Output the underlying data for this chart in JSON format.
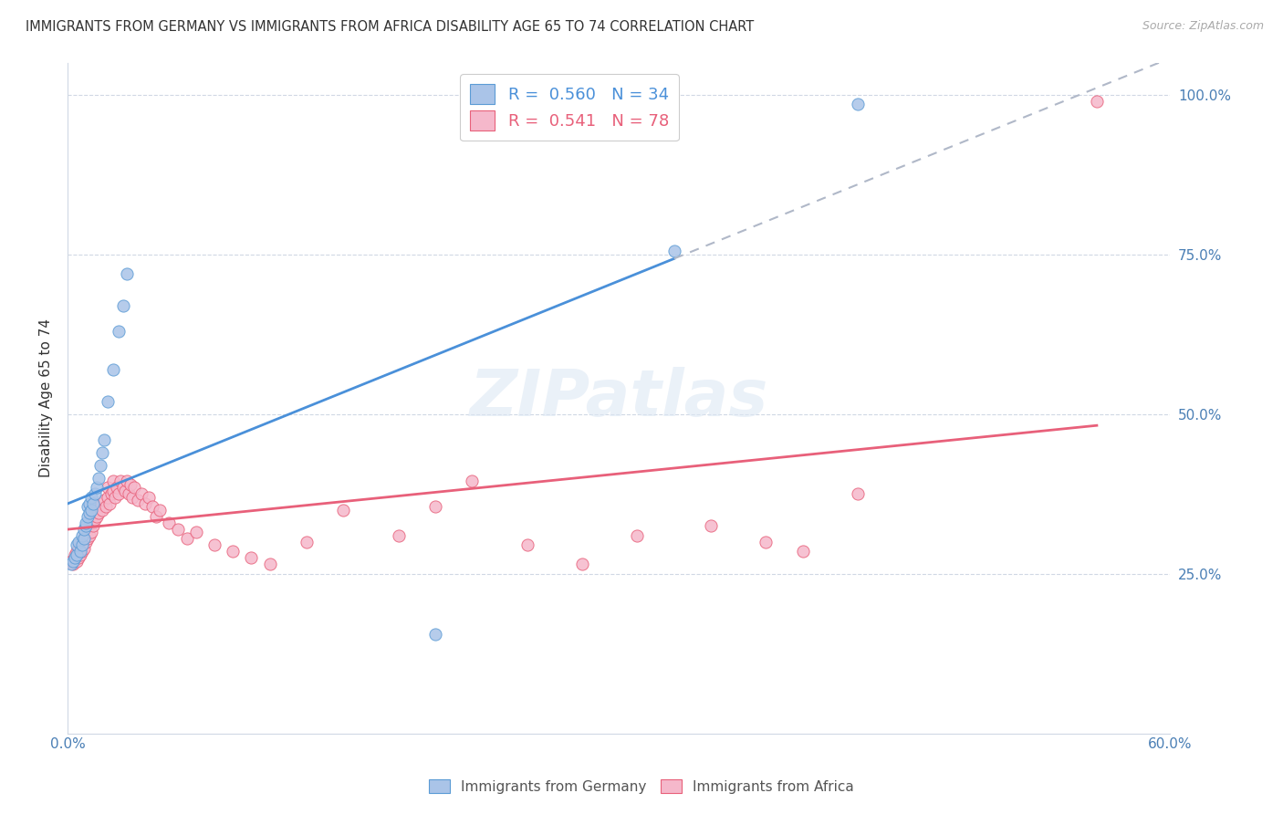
{
  "title": "IMMIGRANTS FROM GERMANY VS IMMIGRANTS FROM AFRICA DISABILITY AGE 65 TO 74 CORRELATION CHART",
  "source": "Source: ZipAtlas.com",
  "ylabel": "Disability Age 65 to 74",
  "germany_color": "#aac4e8",
  "africa_color": "#f5b8cb",
  "germany_edge_color": "#5b9bd5",
  "africa_edge_color": "#e8607a",
  "germany_line_color": "#4a90d9",
  "africa_line_color": "#e8607a",
  "trend_ext_color": "#b0b8c8",
  "watermark": "ZIPatlas",
  "xlim": [
    0.0,
    0.6
  ],
  "ylim": [
    0.0,
    1.05
  ],
  "germany_x": [
    0.002,
    0.003,
    0.004,
    0.005,
    0.005,
    0.006,
    0.007,
    0.008,
    0.008,
    0.009,
    0.009,
    0.01,
    0.01,
    0.011,
    0.011,
    0.012,
    0.012,
    0.013,
    0.013,
    0.014,
    0.015,
    0.016,
    0.017,
    0.018,
    0.019,
    0.02,
    0.022,
    0.025,
    0.028,
    0.03,
    0.032,
    0.2,
    0.33,
    0.43
  ],
  "germany_y": [
    0.265,
    0.27,
    0.275,
    0.28,
    0.295,
    0.3,
    0.285,
    0.295,
    0.31,
    0.305,
    0.32,
    0.325,
    0.33,
    0.34,
    0.355,
    0.345,
    0.36,
    0.35,
    0.37,
    0.36,
    0.375,
    0.385,
    0.4,
    0.42,
    0.44,
    0.46,
    0.52,
    0.57,
    0.63,
    0.67,
    0.72,
    0.155,
    0.755,
    0.985
  ],
  "africa_x": [
    0.002,
    0.003,
    0.004,
    0.004,
    0.005,
    0.005,
    0.006,
    0.006,
    0.007,
    0.007,
    0.008,
    0.008,
    0.009,
    0.009,
    0.01,
    0.01,
    0.011,
    0.011,
    0.012,
    0.012,
    0.013,
    0.013,
    0.013,
    0.014,
    0.015,
    0.015,
    0.016,
    0.016,
    0.017,
    0.018,
    0.019,
    0.02,
    0.021,
    0.022,
    0.022,
    0.023,
    0.024,
    0.025,
    0.025,
    0.026,
    0.027,
    0.028,
    0.029,
    0.03,
    0.031,
    0.032,
    0.033,
    0.034,
    0.035,
    0.036,
    0.038,
    0.04,
    0.042,
    0.044,
    0.046,
    0.048,
    0.05,
    0.055,
    0.06,
    0.065,
    0.07,
    0.08,
    0.09,
    0.1,
    0.11,
    0.13,
    0.15,
    0.18,
    0.2,
    0.22,
    0.25,
    0.28,
    0.31,
    0.35,
    0.38,
    0.4,
    0.43,
    0.56
  ],
  "africa_y": [
    0.27,
    0.265,
    0.275,
    0.28,
    0.27,
    0.285,
    0.275,
    0.29,
    0.28,
    0.295,
    0.285,
    0.3,
    0.29,
    0.305,
    0.3,
    0.315,
    0.305,
    0.32,
    0.31,
    0.325,
    0.315,
    0.33,
    0.34,
    0.325,
    0.335,
    0.35,
    0.34,
    0.355,
    0.345,
    0.36,
    0.35,
    0.365,
    0.355,
    0.37,
    0.385,
    0.36,
    0.375,
    0.38,
    0.395,
    0.37,
    0.385,
    0.375,
    0.395,
    0.385,
    0.38,
    0.395,
    0.375,
    0.39,
    0.37,
    0.385,
    0.365,
    0.375,
    0.36,
    0.37,
    0.355,
    0.34,
    0.35,
    0.33,
    0.32,
    0.305,
    0.315,
    0.295,
    0.285,
    0.275,
    0.265,
    0.3,
    0.35,
    0.31,
    0.355,
    0.395,
    0.295,
    0.265,
    0.31,
    0.325,
    0.3,
    0.285,
    0.375,
    0.99
  ]
}
